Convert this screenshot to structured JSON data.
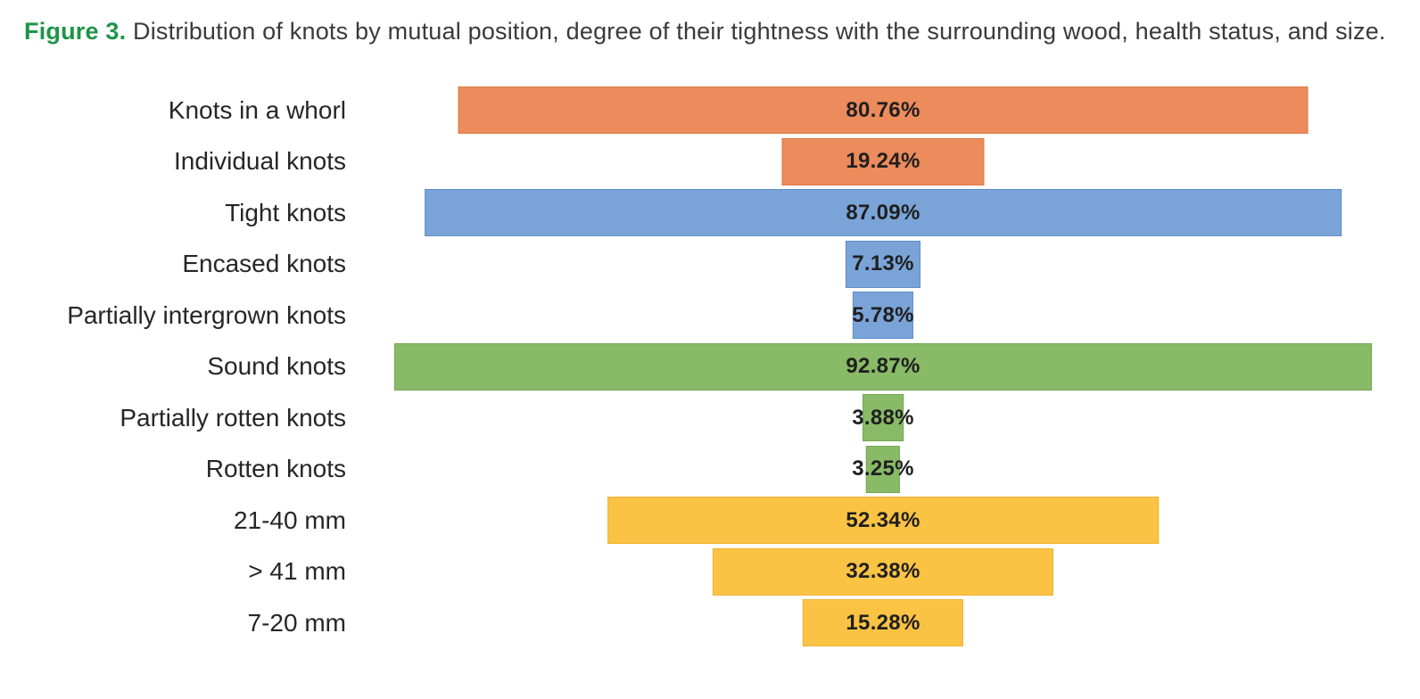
{
  "figure": {
    "label": "Figure 3.",
    "caption": " Distribution of knots by mutual position, degree of their tightness with the surrounding wood, health status, and size.",
    "label_color": "#1d9448",
    "caption_color": "#3a3a3a"
  },
  "chart_data": {
    "type": "bar",
    "orientation": "horizontal",
    "centered_funnel_style": true,
    "xlim": [
      0,
      100
    ],
    "grid": false,
    "legend": false,
    "palette": [
      {
        "name": "mutual-position",
        "fill": "#EC8B5B",
        "border": "#DB7A47"
      },
      {
        "name": "tightness-with-surrounding-wood",
        "fill": "#7AA4D8",
        "border": "#5C8FC6"
      },
      {
        "name": "health-status",
        "fill": "#89BA68",
        "border": "#74A653"
      },
      {
        "name": "size",
        "fill": "#FBC344",
        "border": "#EDB232"
      }
    ],
    "bars": [
      {
        "category": "Knots in a whorl",
        "value": 80.76,
        "display": "80.76%",
        "group": 0
      },
      {
        "category": "Individual knots",
        "value": 19.24,
        "display": "19.24%",
        "group": 0
      },
      {
        "category": "Tight knots",
        "value": 87.09,
        "display": "87.09%",
        "group": 1
      },
      {
        "category": "Encased knots",
        "value": 7.13,
        "display": "7.13%",
        "group": 1
      },
      {
        "category": "Partially intergrown knots",
        "value": 5.78,
        "display": "5.78%",
        "group": 1
      },
      {
        "category": "Sound knots",
        "value": 92.87,
        "display": "92.87%",
        "group": 2
      },
      {
        "category": "Partially rotten knots",
        "value": 3.88,
        "display": "3.88%",
        "group": 2
      },
      {
        "category": "Rotten knots",
        "value": 3.25,
        "display": "3.25%",
        "group": 2
      },
      {
        "category": "21-40 mm",
        "value": 52.34,
        "display": "52.34%",
        "group": 3
      },
      {
        "category": "> 41 mm",
        "value": 32.38,
        "display": "32.38%",
        "group": 3
      },
      {
        "category": "7-20 mm",
        "value": 15.28,
        "display": "15.28%",
        "group": 3
      }
    ]
  }
}
